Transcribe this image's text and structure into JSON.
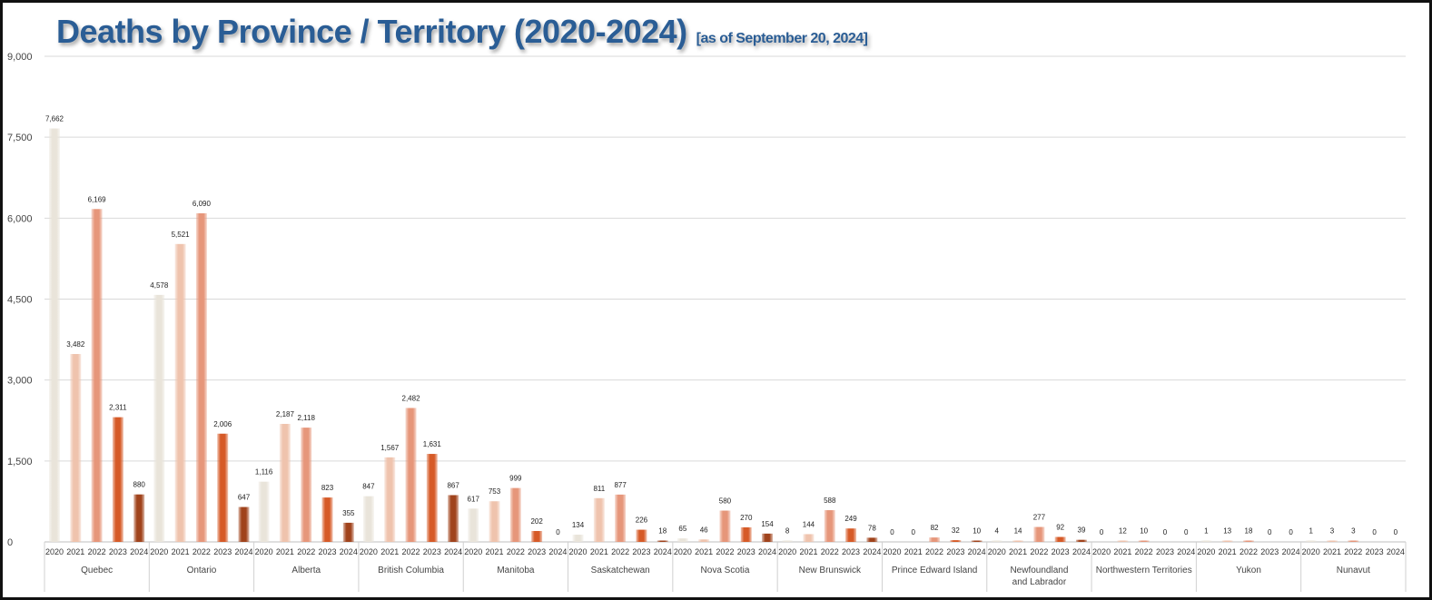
{
  "chart_data": {
    "type": "bar",
    "title": "Deaths by Province / Territory (2020-2024)",
    "subtitle": "[as of September 20, 2024]",
    "xlabel": "",
    "ylabel": "",
    "ylim": [
      0,
      9000
    ],
    "yticks": [
      0,
      1500,
      3000,
      4500,
      6000,
      7500,
      9000
    ],
    "ytick_labels": [
      "0",
      "1,500",
      "3,000",
      "4,500",
      "6,000",
      "7,500",
      "9,000"
    ],
    "grid": true,
    "categories": [
      "Quebec",
      "Ontario",
      "Alberta",
      "British Columbia",
      "Manitoba",
      "Saskatchewan",
      "Nova Scotia",
      "New Brunswick",
      "Prince Edward Island",
      "Newfoundland and Labrador",
      "Northwestern Territories",
      "Yukon",
      "Nunavut"
    ],
    "category_lines": [
      [
        "Quebec"
      ],
      [
        "Ontario"
      ],
      [
        "Alberta"
      ],
      [
        "British Columbia"
      ],
      [
        "Manitoba"
      ],
      [
        "Saskatchewan"
      ],
      [
        "Nova Scotia"
      ],
      [
        "New Brunswick"
      ],
      [
        "Prince Edward Island"
      ],
      [
        "Newfoundland",
        "and Labrador"
      ],
      [
        "Northwestern Territories"
      ],
      [
        "Yukon"
      ],
      [
        "Nunavut"
      ]
    ],
    "years": [
      "2020",
      "2021",
      "2022",
      "2023",
      "2024"
    ],
    "colors": [
      "#e9e4da",
      "#efc3ad",
      "#e6967a",
      "#d65a27",
      "#a0431c"
    ],
    "values": [
      [
        7662,
        3482,
        6169,
        2311,
        880
      ],
      [
        4578,
        5521,
        6090,
        2006,
        647
      ],
      [
        1116,
        2187,
        2118,
        823,
        355
      ],
      [
        847,
        1567,
        2482,
        1631,
        867
      ],
      [
        617,
        753,
        999,
        202,
        0
      ],
      [
        134,
        811,
        877,
        226,
        18
      ],
      [
        65,
        46,
        580,
        270,
        154
      ],
      [
        8,
        144,
        588,
        249,
        78
      ],
      [
        0,
        0,
        82,
        32,
        10
      ],
      [
        4,
        14,
        277,
        92,
        39
      ],
      [
        0,
        12,
        10,
        0,
        0
      ],
      [
        1,
        13,
        18,
        0,
        0
      ],
      [
        1,
        3,
        3,
        0,
        0
      ]
    ]
  }
}
